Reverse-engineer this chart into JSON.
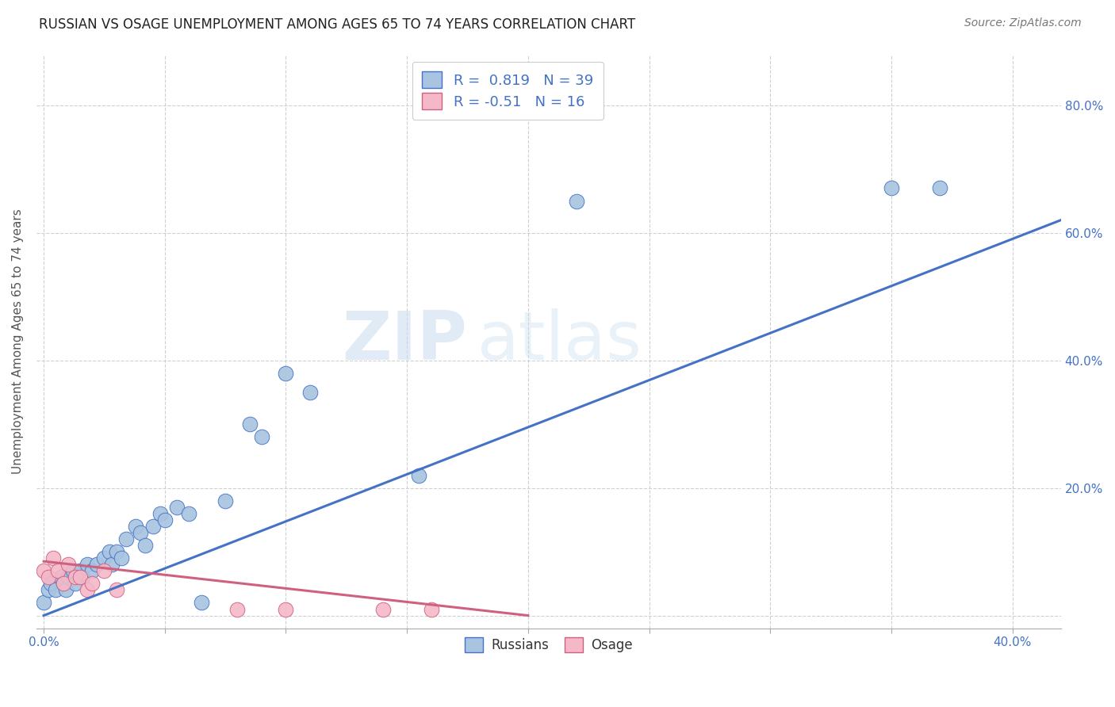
{
  "title": "RUSSIAN VS OSAGE UNEMPLOYMENT AMONG AGES 65 TO 74 YEARS CORRELATION CHART",
  "source": "Source: ZipAtlas.com",
  "ylabel_label": "Unemployment Among Ages 65 to 74 years",
  "legend_labels": [
    "Russians",
    "Osage"
  ],
  "russian_R": 0.819,
  "russian_N": 39,
  "osage_R": -0.51,
  "osage_N": 16,
  "russian_color": "#a8c4e0",
  "russian_line_color": "#4472c4",
  "osage_color": "#f4b8c8",
  "osage_line_color": "#d06080",
  "russian_scatter_x": [
    0.0,
    0.002,
    0.003,
    0.005,
    0.007,
    0.008,
    0.009,
    0.01,
    0.012,
    0.013,
    0.015,
    0.016,
    0.018,
    0.02,
    0.022,
    0.025,
    0.027,
    0.028,
    0.03,
    0.032,
    0.034,
    0.038,
    0.04,
    0.042,
    0.045,
    0.048,
    0.05,
    0.055,
    0.06,
    0.065,
    0.075,
    0.085,
    0.09,
    0.1,
    0.11,
    0.155,
    0.22,
    0.35,
    0.37
  ],
  "russian_scatter_y": [
    0.02,
    0.04,
    0.05,
    0.04,
    0.06,
    0.05,
    0.04,
    0.06,
    0.07,
    0.05,
    0.07,
    0.06,
    0.08,
    0.07,
    0.08,
    0.09,
    0.1,
    0.08,
    0.1,
    0.09,
    0.12,
    0.14,
    0.13,
    0.11,
    0.14,
    0.16,
    0.15,
    0.17,
    0.16,
    0.02,
    0.18,
    0.3,
    0.28,
    0.38,
    0.35,
    0.22,
    0.65,
    0.67,
    0.67
  ],
  "osage_scatter_x": [
    0.0,
    0.002,
    0.004,
    0.006,
    0.008,
    0.01,
    0.013,
    0.015,
    0.018,
    0.02,
    0.025,
    0.03,
    0.08,
    0.1,
    0.14,
    0.16
  ],
  "osage_scatter_y": [
    0.07,
    0.06,
    0.09,
    0.07,
    0.05,
    0.08,
    0.06,
    0.06,
    0.04,
    0.05,
    0.07,
    0.04,
    0.01,
    0.01,
    0.01,
    0.01
  ],
  "russian_line_x0": 0.0,
  "russian_line_y0": 0.0,
  "russian_line_x1": 0.42,
  "russian_line_y1": 0.62,
  "osage_line_x0": 0.0,
  "osage_line_y0": 0.085,
  "osage_line_x1": 0.2,
  "osage_line_y1": 0.0,
  "watermark_zip": "ZIP",
  "watermark_atlas": "atlas",
  "background_color": "#ffffff",
  "grid_color": "#d0d0d0",
  "xlim": [
    -0.003,
    0.42
  ],
  "ylim": [
    -0.02,
    0.88
  ],
  "x_tick_vals": [
    0.0,
    0.05,
    0.1,
    0.15,
    0.2,
    0.25,
    0.3,
    0.35,
    0.4
  ],
  "x_tick_labels": [
    "0.0%",
    "",
    "",
    "",
    "",
    "",
    "",
    "",
    "40.0%"
  ],
  "y_tick_vals": [
    0.0,
    0.2,
    0.4,
    0.6,
    0.8
  ],
  "y_tick_labels": [
    "",
    "20.0%",
    "40.0%",
    "60.0%",
    "80.0%"
  ]
}
